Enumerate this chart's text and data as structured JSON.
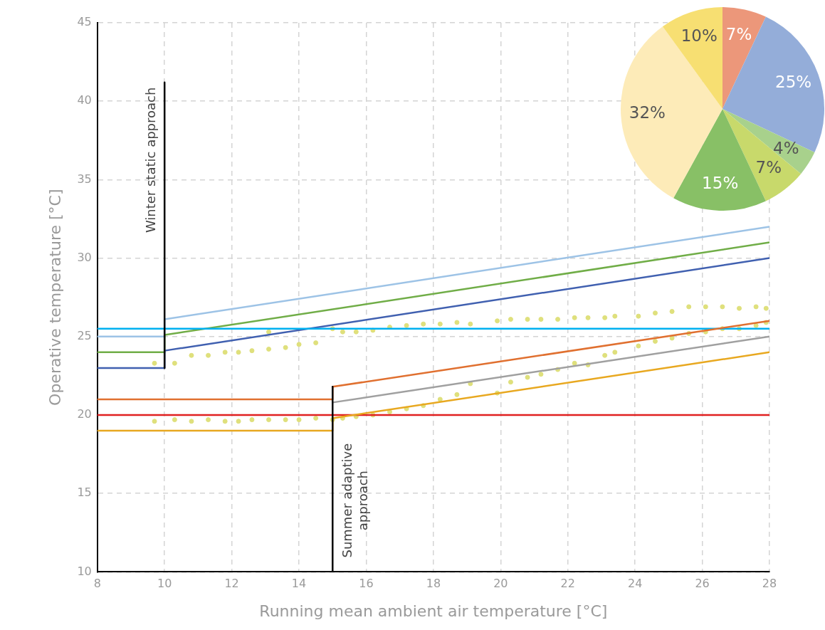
{
  "chart_data": [
    {
      "type": "line",
      "xlabel": "Running mean ambient air temperature [°C]",
      "ylabel": "Operative temperature [°C]",
      "xlim": [
        8,
        28
      ],
      "xticks": [
        8,
        10,
        12,
        14,
        16,
        18,
        20,
        22,
        24,
        26,
        28
      ],
      "ylim": [
        10,
        45
      ],
      "yticks": [
        10,
        15,
        20,
        25,
        30,
        35,
        40,
        45
      ],
      "grid": true,
      "legend": false,
      "series": [
        {
          "type": "scatter",
          "marker": "circle",
          "color": "#dfe07c",
          "x": [
            9.7,
            9.7,
            10.3,
            10.3,
            10.8,
            10.8,
            11.3,
            11.3,
            11.8,
            11.8,
            12.2,
            12.2,
            12.6,
            12.6,
            13.1,
            13.1,
            13.1,
            13.6,
            13.6,
            14.0,
            14.0,
            14.5,
            14.5,
            15.0,
            15.0,
            15.3,
            15.3,
            15.7,
            15.7,
            16.2,
            16.2,
            16.7,
            16.7,
            17.2,
            17.2,
            17.7,
            17.7,
            18.2,
            18.2,
            18.7,
            18.7,
            19.1,
            19.1,
            19.9,
            19.9,
            20.3,
            20.3,
            20.8,
            20.8,
            21.2,
            21.2,
            21.7,
            21.7,
            22.2,
            22.2,
            22.6,
            22.6,
            23.1,
            23.1,
            23.4,
            23.4,
            24.1,
            24.1,
            24.6,
            24.6,
            25.1,
            25.1,
            25.6,
            25.6,
            26.1,
            26.1,
            26.6,
            26.6,
            27.1,
            27.1,
            27.6,
            27.6,
            27.9,
            27.9
          ],
          "values": [
            19.6,
            23.3,
            19.7,
            23.3,
            19.6,
            23.8,
            19.7,
            23.8,
            19.6,
            24.0,
            19.6,
            24.0,
            19.7,
            24.1,
            19.7,
            24.2,
            25.3,
            19.7,
            24.3,
            19.7,
            24.5,
            19.8,
            24.6,
            19.7,
            25.5,
            19.8,
            25.3,
            19.9,
            25.3,
            20.0,
            25.4,
            20.2,
            25.6,
            20.4,
            25.7,
            20.6,
            25.8,
            21.0,
            25.8,
            21.3,
            25.9,
            22.0,
            25.8,
            21.4,
            26.0,
            22.1,
            26.1,
            22.4,
            26.1,
            22.6,
            26.1,
            22.9,
            26.1,
            23.3,
            26.2,
            23.2,
            26.2,
            23.8,
            26.2,
            24.0,
            26.3,
            24.4,
            26.3,
            24.7,
            26.5,
            24.9,
            26.6,
            25.2,
            26.9,
            25.3,
            26.9,
            25.5,
            26.9,
            25.5,
            26.8,
            25.7,
            26.9,
            25.9,
            26.8
          ]
        },
        {
          "type": "line",
          "marker": "none",
          "color": "#9dc3e6",
          "x": [
            8,
            10,
            10,
            28
          ],
          "values": [
            25,
            25,
            26.1,
            32.0
          ]
        },
        {
          "type": "line",
          "marker": "none",
          "color": "#70ad47",
          "x": [
            8,
            10,
            10,
            28
          ],
          "values": [
            24,
            24,
            25.1,
            31.0
          ]
        },
        {
          "type": "line",
          "marker": "none",
          "color": "#4060b0",
          "x": [
            8,
            10,
            10,
            28
          ],
          "values": [
            23,
            23,
            24.1,
            30.0
          ]
        },
        {
          "type": "line",
          "marker": "none",
          "color": "#00b0f0",
          "x": [
            8,
            28
          ],
          "values": [
            25.5,
            25.5
          ]
        },
        {
          "type": "line",
          "marker": "none",
          "color": "#e07030",
          "x": [
            8,
            15,
            15,
            28
          ],
          "values": [
            21,
            21,
            21.8,
            26.0
          ]
        },
        {
          "type": "line",
          "marker": "none",
          "color": "#a0a0a0",
          "x": [
            15,
            28
          ],
          "values": [
            20.8,
            25.0
          ]
        },
        {
          "type": "line",
          "marker": "none",
          "color": "#e02020",
          "x": [
            8,
            28
          ],
          "values": [
            20,
            20
          ]
        },
        {
          "type": "line",
          "marker": "none",
          "color": "#e8a820",
          "x": [
            8,
            15,
            15,
            28
          ],
          "values": [
            19,
            19,
            19.8,
            24.0
          ]
        },
        {
          "type": "line",
          "marker": "none",
          "color": "#000000",
          "x": [
            10,
            10
          ],
          "values": [
            23,
            41.2
          ]
        },
        {
          "type": "line",
          "marker": "none",
          "color": "#000000",
          "x": [
            15,
            15
          ],
          "values": [
            10,
            21.8
          ]
        }
      ],
      "annotations": [
        "Winter static approach",
        "Summer adaptive approach"
      ]
    },
    {
      "type": "pie",
      "categories": [
        null,
        null,
        null,
        null,
        null,
        null,
        null
      ],
      "values": [
        7,
        25,
        4,
        7,
        15,
        32,
        10
      ],
      "colors": [
        "#ec977a",
        "#94add9",
        "#a8d18c",
        "#c8d96b",
        "#88c066",
        "#fdebb8",
        "#f7df72"
      ],
      "value_labels": [
        "7%",
        "25%",
        "4%",
        "7%",
        "15%",
        "32%",
        "10%"
      ]
    }
  ]
}
